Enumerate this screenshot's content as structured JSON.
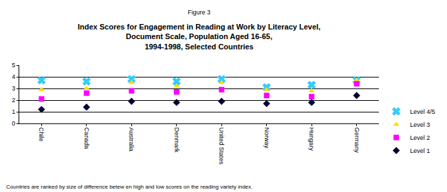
{
  "chart_data": {
    "type": "scatter",
    "subtitle": "Figure 3",
    "title": "Index Scores for Engagement in Reading at Work by Literacy Level,\nDocument Scale, Population Aged 16-65,\n1994-1998, Selected Countries",
    "annotations": [
      "Countries are ranked by size of difference betew en high and low scores on the reading variety index."
    ],
    "categories": [
      "Chile",
      "Canada",
      "Australia",
      "Denmark",
      "United States",
      "Norway",
      "Hungary",
      "Germany"
    ],
    "series": [
      {
        "name": "Level 4/5",
        "color": "#33ccff",
        "marker": "x",
        "values": [
          3.7,
          3.6,
          3.8,
          3.6,
          3.8,
          3.1,
          3.3,
          3.7
        ]
      },
      {
        "name": "Level 3",
        "color": "#ffdd00",
        "marker": "triangle-up",
        "values": [
          2.9,
          3.0,
          3.5,
          3.2,
          3.5,
          2.9,
          2.8,
          3.7
        ]
      },
      {
        "name": "Level 2",
        "color": "#ff00ff",
        "marker": "square",
        "values": [
          2.1,
          2.6,
          2.8,
          2.7,
          2.9,
          2.4,
          2.3,
          3.4
        ]
      },
      {
        "name": "Level 1",
        "color": "#000033",
        "marker": "diamond",
        "values": [
          1.2,
          1.4,
          1.9,
          1.8,
          1.9,
          1.7,
          1.8,
          2.4
        ]
      }
    ],
    "ylim": [
      0,
      5
    ],
    "yticks": [
      0,
      1,
      2,
      3,
      4,
      5
    ],
    "grid": true,
    "legend": "right"
  }
}
